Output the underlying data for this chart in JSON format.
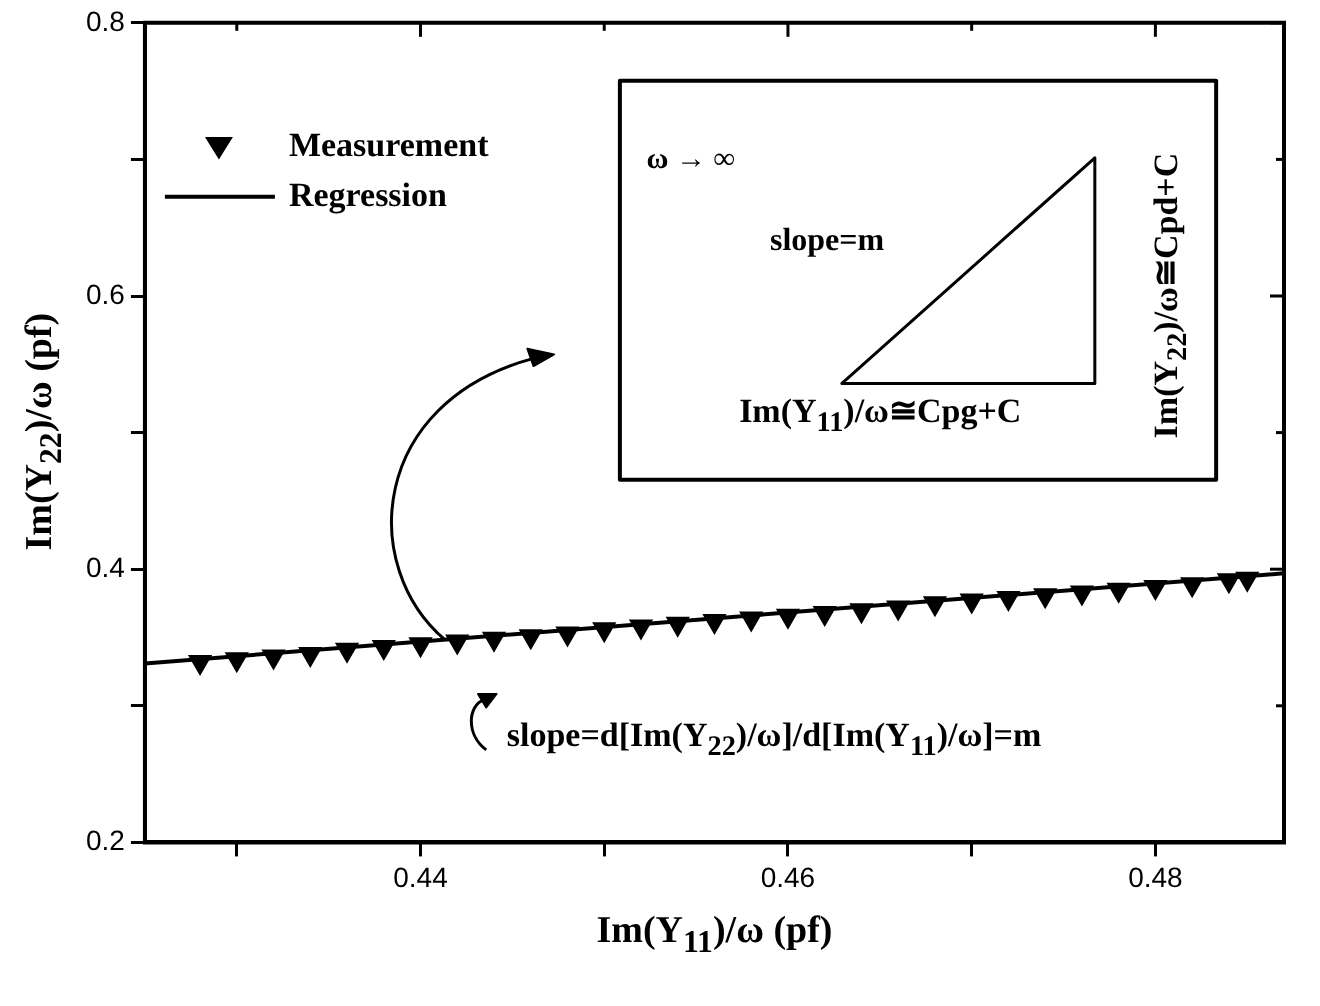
{
  "chart_data": {
    "type": "scatter",
    "xlabel": "Im(Y$_{11}$)/ω (pf)",
    "ylabel": "Im(Y$_{22}$)/ω (pf)",
    "xlim": [
      0.425,
      0.487
    ],
    "xticks": [
      {
        "value": 0.43,
        "label": null
      },
      0.44,
      {
        "value": 0.45,
        "label": null
      },
      0.46,
      {
        "value": 0.47,
        "label": null
      },
      0.48
    ],
    "ylim": [
      0.2,
      0.8
    ],
    "yticks": [
      0.2,
      {
        "value": 0.3,
        "label": null
      },
      0.4,
      {
        "value": 0.5,
        "label": null
      },
      0.6,
      {
        "value": 0.7,
        "label": null
      },
      0.8
    ],
    "grid": false,
    "legend": "top left",
    "series": [
      {
        "name": "Measurement",
        "type": "scatter",
        "marker": "triangle",
        "color": "#000000",
        "x": [
          0.428,
          0.43,
          0.432,
          0.434,
          0.436,
          0.438,
          0.44,
          0.442,
          0.444,
          0.446,
          0.448,
          0.45,
          0.452,
          0.454,
          0.456,
          0.458,
          0.46,
          0.462,
          0.464,
          0.466,
          0.468,
          0.47,
          0.472,
          0.474,
          0.476,
          0.478,
          0.48,
          0.482,
          0.484,
          0.485
        ],
        "values": [
          0.332,
          0.334,
          0.336,
          0.338,
          0.341,
          0.343,
          0.345,
          0.347,
          0.349,
          0.351,
          0.353,
          0.356,
          0.358,
          0.36,
          0.362,
          0.364,
          0.366,
          0.368,
          0.37,
          0.372,
          0.375,
          0.377,
          0.379,
          0.381,
          0.383,
          0.385,
          0.387,
          0.389,
          0.392,
          0.393
        ]
      },
      {
        "name": "Regression",
        "type": "line",
        "marker": "none",
        "line_style": "solid",
        "color": "#000000",
        "x": [
          0.425,
          0.487
        ],
        "values": [
          0.331,
          0.397
        ]
      }
    ],
    "annotations": [
      "ω → ∞",
      "slope=m",
      "Im(Y$_{11}$)/ω≅Cpg+C",
      "Im(Y$_{22}$)/ω≅Cpd+C",
      "slope=d[Im(Y$_{22}$)/ω]/d[Im(Y$_{11}$)/ω]=m"
    ]
  }
}
